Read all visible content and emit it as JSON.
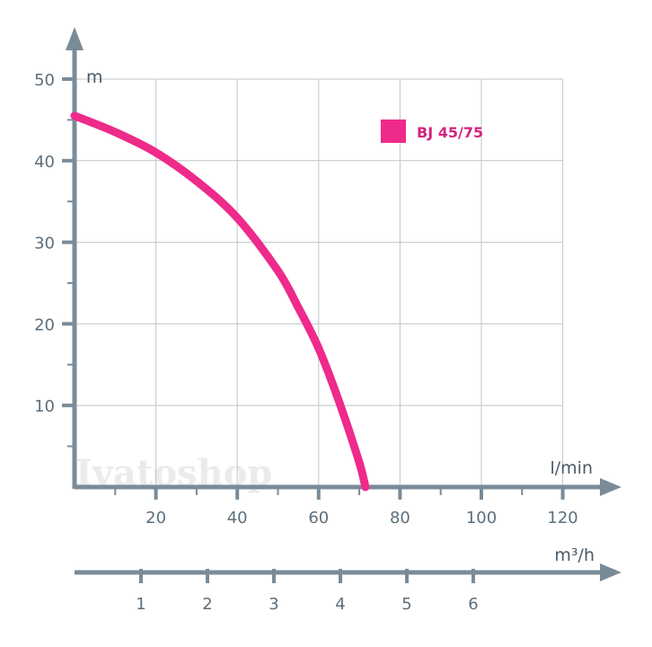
{
  "watermark": "Ivatoshop",
  "chart_data": {
    "type": "line",
    "xlabel": "l/min",
    "ylabel": "m",
    "x2label": "m³/h",
    "xlim": [
      0,
      130
    ],
    "ylim": [
      0,
      50
    ],
    "x2lim": [
      0,
      7.8
    ],
    "xticks": [
      20,
      40,
      60,
      80,
      100,
      120
    ],
    "yticks": [
      10,
      20,
      30,
      40,
      50
    ],
    "x2ticks": [
      1,
      2,
      3,
      4,
      5,
      6
    ],
    "grid": true,
    "legend_position": "top-right",
    "series": [
      {
        "name": "BJ 45/75",
        "color": "#ee2a8a",
        "x": [
          0,
          10,
          20,
          30,
          40,
          50,
          55,
          60,
          65,
          70,
          71.5
        ],
        "y": [
          45.5,
          43.5,
          41,
          37.5,
          33,
          26.5,
          22,
          17,
          10.5,
          3,
          0
        ]
      }
    ]
  }
}
